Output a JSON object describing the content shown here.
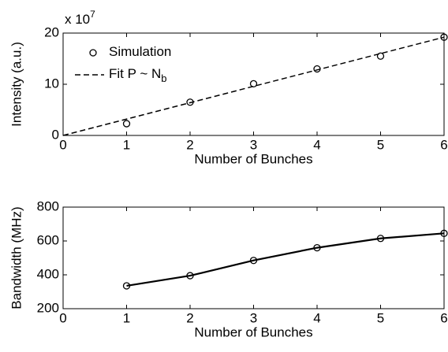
{
  "chart_data": [
    {
      "type": "scatter",
      "xlabel": "Number of Bunches",
      "ylabel": "Intensity (a.u.)",
      "y_multiplier": {
        "base": "x 10",
        "exponent": "7"
      },
      "xlim": [
        0,
        6
      ],
      "xticks": [
        0,
        1,
        2,
        3,
        4,
        5,
        6
      ],
      "ylim": [
        0,
        20
      ],
      "yticks": [
        0,
        10,
        20
      ],
      "series": [
        {
          "name": "Simulation",
          "color": "#000000",
          "marker": "o",
          "linestyle": "none",
          "x": [
            1,
            2,
            3,
            4,
            5,
            6
          ],
          "values": [
            2.3,
            6.5,
            10.1,
            13.0,
            15.5,
            19.2
          ]
        },
        {
          "name": "Fit  P ~ N",
          "subscript": "b",
          "color": "#000000",
          "marker": "none",
          "linestyle": "--",
          "x": [
            0,
            6
          ],
          "values": [
            0,
            19.2
          ]
        }
      ],
      "legend": "upper left"
    },
    {
      "type": "line",
      "xlabel": "Number of Bunches",
      "ylabel": "Bandwidth (MHz)",
      "xlim": [
        0,
        6
      ],
      "xticks": [
        0,
        1,
        2,
        3,
        4,
        5,
        6
      ],
      "ylim": [
        200,
        800
      ],
      "yticks": [
        200,
        400,
        600,
        800
      ],
      "series": [
        {
          "color": "#000000",
          "marker": "o",
          "linestyle": "-",
          "x": [
            1,
            2,
            3,
            4,
            5,
            6
          ],
          "values": [
            335,
            395,
            485,
            560,
            615,
            645
          ]
        }
      ]
    }
  ]
}
